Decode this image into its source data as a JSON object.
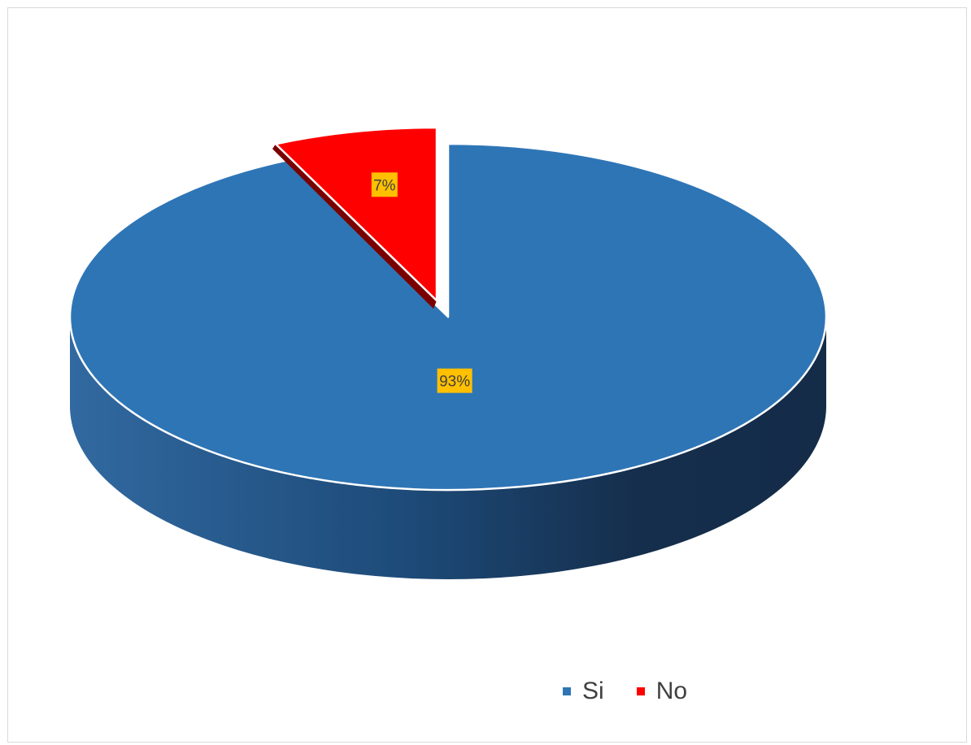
{
  "chart_data": {
    "type": "pie",
    "style": "3d",
    "categories": [
      "Si",
      "No"
    ],
    "values": [
      93,
      7
    ],
    "data_labels": [
      "93%",
      "7%"
    ],
    "exploded_slice": "No",
    "legend_position": "bottom",
    "colors": {
      "Si": "#2E75B6",
      "No": "#FF0000",
      "label_background": "#FFC000"
    }
  }
}
